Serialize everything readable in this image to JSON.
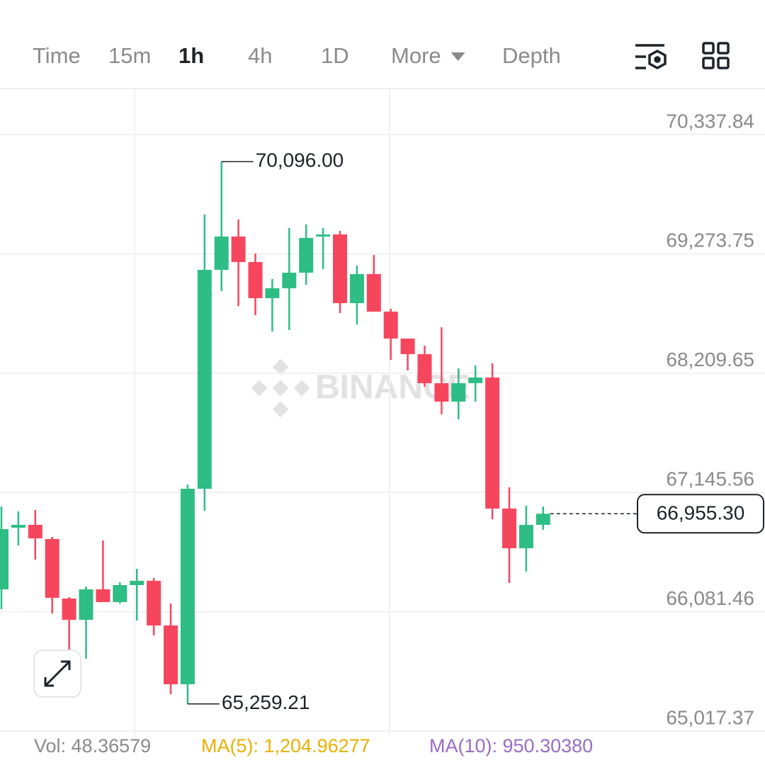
{
  "toolbar": {
    "tabs": [
      "Time",
      "15m",
      "1h",
      "4h",
      "1D",
      "More",
      "Depth"
    ],
    "active_tab": "1h"
  },
  "watermark": "BINANCE",
  "volume_legend": {
    "vol": "Vol: 48.36579",
    "ma5": "MA(5): 1,204.96277",
    "ma10": "MA(10): 950.30380"
  },
  "chart_data": {
    "type": "candlestick",
    "open": [
      66281.0,
      66830.8,
      66856.1,
      66729.7,
      66198.9,
      66009.3,
      66281.0,
      66167.3,
      66318.9,
      66356.9,
      65958.7,
      65434.3,
      67178.3,
      69130.9,
      69427.9,
      69200.4,
      68878.1,
      68966.6,
      69105.6,
      69427.9,
      69446.9,
      68833.9,
      69093.0,
      68758.1,
      68517.9,
      68379.0,
      68119.9,
      67955.6,
      68119.9,
      68170.4,
      67001.4,
      66647.6,
      66856.1
    ],
    "high": [
      67020.4,
      66976.1,
      66988.8,
      66748.6,
      66211.5,
      66306.3,
      66717.1,
      66344.2,
      66464.3,
      66382.1,
      66154.6,
      67216.2,
      69623.8,
      70096,
      69579.6,
      69276.3,
      69048.8,
      69503.7,
      69535.3,
      69503.7,
      69478.5,
      69168.8,
      69263.6,
      68783.4,
      68517.9,
      68454.8,
      68619.1,
      68252.6,
      68277.8,
      68296.8,
      67191.0,
      67026.7,
      67020.4
    ],
    "low": [
      66104.1,
      66672.8,
      66546.4,
      66066.2,
      65743.9,
      65661.8,
      66167.3,
      66154.6,
      66003.0,
      65870.3,
      65345.8,
      65259.21,
      66982.4,
      68941.3,
      68808.6,
      68726.5,
      68581.1,
      68593.8,
      68998.2,
      69137.2,
      68745.4,
      68644.3,
      68758.1,
      68328.4,
      68233.6,
      68088.3,
      67841.8,
      67797.6,
      67955.6,
      66906.6,
      66337.9,
      66439.0,
      66811.8
    ],
    "close": [
      66818.2,
      66856.1,
      66736.0,
      66205.2,
      66009.3,
      66281.0,
      66167.3,
      66318.9,
      66356.9,
      65958.7,
      65434.3,
      67178.3,
      69130.9,
      69427.9,
      69200.4,
      68878.1,
      68966.6,
      69105.6,
      69415.3,
      69446.9,
      68833.9,
      69093.0,
      68758.1,
      68517.9,
      68379.0,
      68119.9,
      67955.6,
      68119.9,
      68170.4,
      67001.4,
      66647.6,
      66856.1,
      66955.3
    ],
    "up_color": "#2ebd85",
    "down_color": "#f6465d",
    "ylim": [
      65017.37,
      70748
    ],
    "yticks": [
      {
        "value": 70337.84,
        "label": "70,337.84"
      },
      {
        "value": 69273.75,
        "label": "69,273.75"
      },
      {
        "value": 68209.65,
        "label": "68,209.65"
      },
      {
        "value": 67145.56,
        "label": "67,145.56"
      },
      {
        "value": 66081.46,
        "label": "66,081.46"
      },
      {
        "value": 65017.37,
        "label": "65,017.37"
      }
    ],
    "grid": true,
    "max_label": {
      "value": 70096,
      "label": "70,096.00"
    },
    "min_label": {
      "value": 65259.21,
      "label": "65,259.21"
    },
    "current_price": {
      "value": 66955.3,
      "label": "66,955.30"
    }
  }
}
